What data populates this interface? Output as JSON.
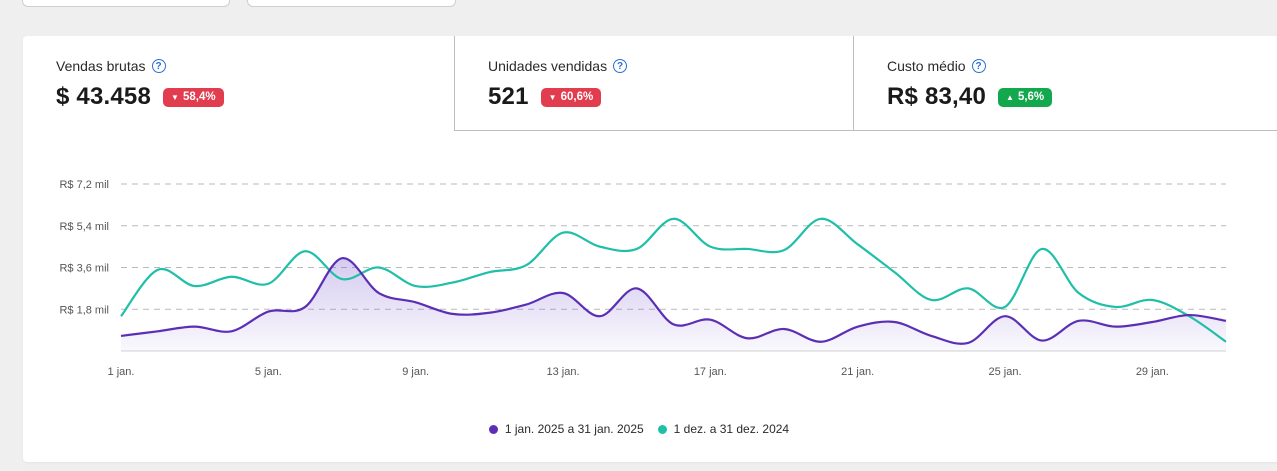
{
  "metrics": [
    {
      "label": "Vendas brutas",
      "value": "$ 43.458",
      "delta": "58,4%",
      "direction": "down"
    },
    {
      "label": "Unidades vendidas",
      "value": "521",
      "delta": "60,6%",
      "direction": "down"
    },
    {
      "label": "Custo médio",
      "value": "R$ 83,40",
      "delta": "5,6%",
      "direction": "up"
    }
  ],
  "help_icon_glyph": "?",
  "colors": {
    "current": "#5b2fb5",
    "previous": "#1fbfa8",
    "down": "#e23c4f",
    "up": "#14a84e"
  },
  "chart_data": {
    "type": "line",
    "yticks": [
      {
        "value": 1800,
        "label": "R$ 1,8 mil"
      },
      {
        "value": 3600,
        "label": "R$ 3,6 mil"
      },
      {
        "value": 5400,
        "label": "R$ 5,4 mil"
      },
      {
        "value": 7200,
        "label": "R$ 7,2 mil"
      }
    ],
    "ylim": [
      0,
      7200
    ],
    "xlim": [
      1,
      31
    ],
    "xticks": [
      {
        "day": 1,
        "label": "1 jan."
      },
      {
        "day": 5,
        "label": "5 jan."
      },
      {
        "day": 9,
        "label": "9 jan."
      },
      {
        "day": 13,
        "label": "13 jan."
      },
      {
        "day": 17,
        "label": "17 jan."
      },
      {
        "day": 21,
        "label": "21 jan."
      },
      {
        "day": 25,
        "label": "25 jan."
      },
      {
        "day": 29,
        "label": "29 jan."
      }
    ],
    "series": [
      {
        "name": "1 jan. 2025 a 31 jan. 2025",
        "color": "#5b2fb5",
        "x": [
          1,
          2,
          3,
          4,
          5,
          6,
          7,
          8,
          9,
          10,
          11,
          12,
          13,
          14,
          15,
          16,
          17,
          18,
          19,
          20,
          21,
          22,
          23,
          24,
          25,
          26,
          27,
          28,
          29,
          30,
          31
        ],
        "values": [
          650,
          850,
          1050,
          850,
          1700,
          1900,
          4000,
          2500,
          2100,
          1600,
          1650,
          2000,
          2500,
          1500,
          2700,
          1150,
          1350,
          550,
          950,
          400,
          1050,
          1250,
          650,
          350,
          1500,
          450,
          1300,
          1050,
          1250,
          1550,
          1300
        ]
      },
      {
        "name": "1 dez. a 31 dez. 2024",
        "color": "#1fbfa8",
        "x": [
          1,
          2,
          3,
          4,
          5,
          6,
          7,
          8,
          9,
          10,
          11,
          12,
          13,
          14,
          15,
          16,
          17,
          18,
          19,
          20,
          21,
          22,
          23,
          24,
          25,
          26,
          27,
          28,
          29,
          30,
          31
        ],
        "values": [
          1500,
          3500,
          2800,
          3200,
          2900,
          4300,
          3100,
          3600,
          2800,
          2950,
          3400,
          3700,
          5100,
          4500,
          4400,
          5700,
          4500,
          4400,
          4350,
          5700,
          4600,
          3400,
          2200,
          2700,
          1900,
          4400,
          2500,
          1900,
          2200,
          1500,
          400
        ]
      }
    ]
  }
}
